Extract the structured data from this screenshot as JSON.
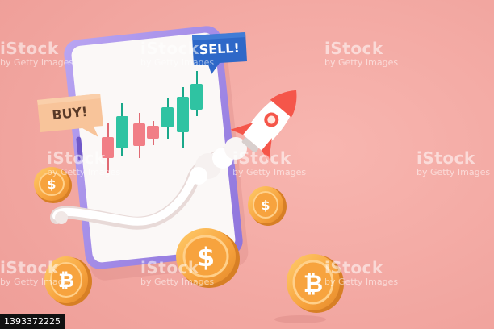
{
  "scene": {
    "background_color": "#f4aaa4",
    "phone_frame_color": "#a58ee6",
    "phone_screen_color": "#fbf8f7",
    "bull_candle_color": "#2fc3a2",
    "bear_candle_color": "#f17e86",
    "coin_color": "#f9a84a",
    "buy_label": "BUY!",
    "sell_label": "SELL!",
    "buy_bubble_color": "#f8c49a",
    "sell_bubble_color": "#2e68c8",
    "rocket_icon": "rocket-icon",
    "coin_icons": [
      "dollar-coin-icon",
      "bitcoin-coin-icon"
    ]
  },
  "watermark": {
    "brand": "iStock",
    "credit": "by Getty Images"
  },
  "image_id": "1393372225"
}
